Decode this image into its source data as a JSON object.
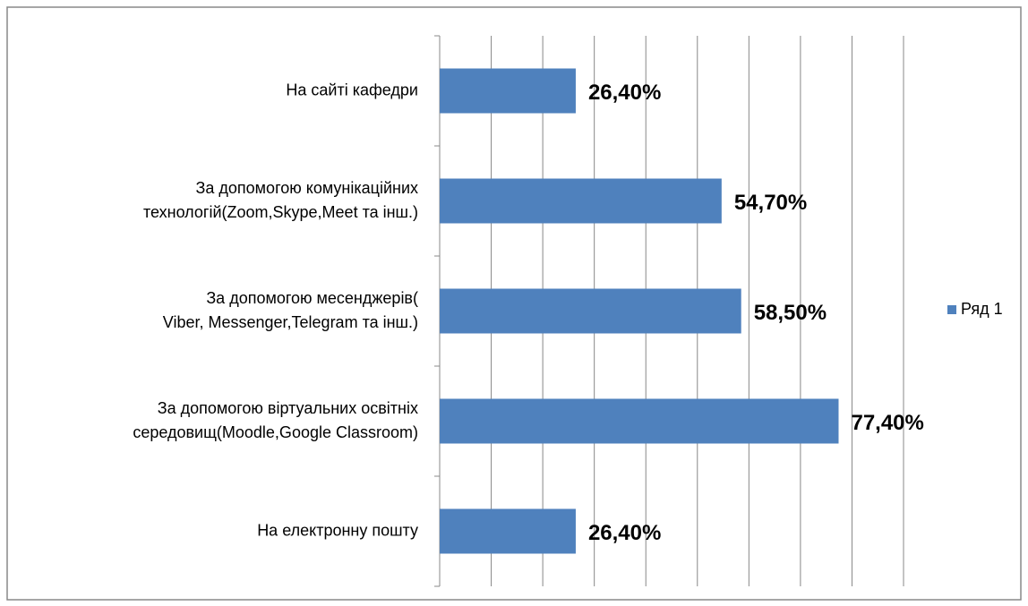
{
  "chart_data": {
    "type": "bar",
    "orientation": "horizontal",
    "categories": [
      [
        "На сайті кафедри"
      ],
      [
        "За допомогою комунікаційних",
        "технологій(Zoom,Skype,Meet та інш.)"
      ],
      [
        "За допомогою месенджерів(",
        "Viber, Messenger,Telegram та інш.)"
      ],
      [
        "За допомогою віртуальних освітніх",
        "середовищ(Moodle,Google Classroom)"
      ],
      [
        "На електронну пошту"
      ]
    ],
    "series": [
      {
        "name": "Ряд 1",
        "color": "#4f81bd",
        "values": [
          26.4,
          54.7,
          58.5,
          77.4,
          26.4
        ],
        "value_labels": [
          "26,40%",
          "54,70%",
          "58,50%",
          "77,40%",
          "26,40%"
        ]
      }
    ],
    "xlim": [
      0,
      90
    ],
    "xticks": [
      0,
      10,
      20,
      30,
      40,
      50,
      60,
      70,
      80,
      90
    ],
    "grid": true,
    "legend": "right"
  }
}
